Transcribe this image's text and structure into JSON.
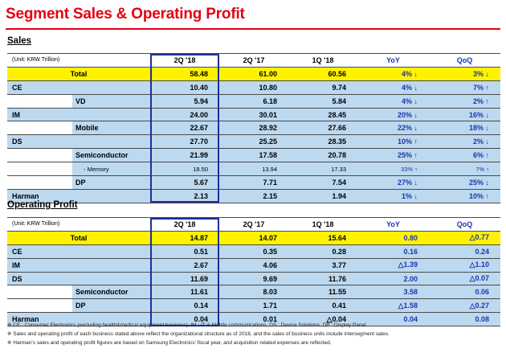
{
  "title": "Segment Sales & Operating Profit",
  "sales": {
    "heading": "Sales",
    "unit": "(Unit: KRW Trillion)",
    "columns": [
      "2Q '18",
      "2Q '17",
      "1Q '18",
      "YoY",
      "QoQ"
    ],
    "rows": [
      {
        "kind": "total",
        "label": "Total",
        "values": [
          "58.48",
          "61.00",
          "60.56",
          "4% ↓",
          "3% ↓"
        ]
      },
      {
        "kind": "seg",
        "label": "CE",
        "values": [
          "10.40",
          "10.80",
          "9.74",
          "4% ↓",
          "7% ↑"
        ]
      },
      {
        "kind": "sub",
        "label": "VD",
        "values": [
          "5.94",
          "6.18",
          "5.84",
          "4% ↓",
          "2% ↑"
        ]
      },
      {
        "kind": "seg",
        "label": "IM",
        "values": [
          "24.00",
          "30.01",
          "28.45",
          "20% ↓",
          "16% ↓"
        ]
      },
      {
        "kind": "sub",
        "label": "Mobile",
        "values": [
          "22.67",
          "28.92",
          "27.66",
          "22% ↓",
          "18% ↓"
        ]
      },
      {
        "kind": "seg",
        "label": "DS",
        "values": [
          "27.70",
          "25.25",
          "28.35",
          "10% ↑",
          "2% ↓"
        ]
      },
      {
        "kind": "sub",
        "label": "Semiconductor",
        "values": [
          "21.99",
          "17.58",
          "20.78",
          "25% ↑",
          "6% ↑"
        ]
      },
      {
        "kind": "subsub",
        "label": "- Memory",
        "values": [
          "18.50",
          "13.94",
          "17.33",
          "33% ↑",
          "7% ↑"
        ]
      },
      {
        "kind": "sub",
        "label": "DP",
        "values": [
          "5.67",
          "7.71",
          "7.54",
          "27% ↓",
          "25% ↓"
        ]
      },
      {
        "kind": "seg",
        "label": "Harman",
        "values": [
          "2.13",
          "2.15",
          "1.94",
          "1% ↓",
          "10% ↑"
        ]
      }
    ]
  },
  "op": {
    "heading": "Operating Profit",
    "unit": "(Unit: KRW Trillion)",
    "columns": [
      "2Q '18",
      "2Q '17",
      "1Q '18",
      "YoY",
      "QoQ"
    ],
    "rows": [
      {
        "kind": "total",
        "label": "Total",
        "values": [
          "14.87",
          "14.07",
          "15.64",
          "0.80",
          "△0.77"
        ]
      },
      {
        "kind": "seg",
        "label": "CE",
        "values": [
          "0.51",
          "0.35",
          "0.28",
          "0.16",
          "0.24"
        ]
      },
      {
        "kind": "seg",
        "label": "IM",
        "values": [
          "2.67",
          "4.06",
          "3.77",
          "△1.39",
          "△1.10"
        ]
      },
      {
        "kind": "seg",
        "label": "DS",
        "values": [
          "11.69",
          "9.69",
          "11.76",
          "2.00",
          "△0.07"
        ]
      },
      {
        "kind": "sub",
        "label": "Semiconductor",
        "values": [
          "11.61",
          "8.03",
          "11.55",
          "3.58",
          "0.06"
        ]
      },
      {
        "kind": "sub",
        "label": "DP",
        "values": [
          "0.14",
          "1.71",
          "0.41",
          "△1.58",
          "△0.27"
        ]
      },
      {
        "kind": "seg",
        "label": "Harman",
        "values": [
          "0.04",
          "0.01",
          "△0.04",
          "0.04",
          "0.08"
        ]
      }
    ]
  },
  "footnotes": [
    "※ CE : Consumer Electronics (excluding health&medical equipment business),  IM : IT & Mobile communications,  DS : Device Solutions,  DP : Display Panel",
    "※ Sales and operating profit of each business stated above reflect the organizational structure  as of 2018, and the sales of business units include intersegment sales.",
    "※ Harman's sales and operating profit figures are based on Samsung Electronics' fiscal year, and acquisition related expenses are reflected."
  ],
  "colors": {
    "title": "#e60012",
    "total_row": "#fff200",
    "segment_row": "#bcd9f0",
    "change_text": "#1c36a8",
    "highlight_border": "#1f2f96"
  }
}
